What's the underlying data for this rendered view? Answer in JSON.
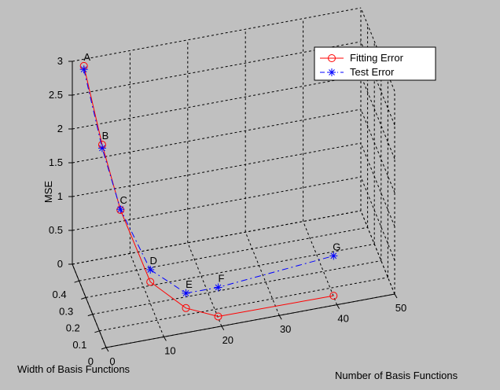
{
  "chart_data": {
    "type": "line",
    "projection": "3d",
    "grid": true,
    "legend_placement": "top-right",
    "xlabel": "Number of Basis Functions",
    "ylabel": "Width of Basis Functions",
    "zlabel": "MSE",
    "xlim": [
      0,
      50
    ],
    "ylim": [
      0,
      0.5
    ],
    "zlim": [
      0,
      3
    ],
    "x_ticks": [
      "0",
      "10",
      "20",
      "30",
      "40",
      "50"
    ],
    "y_ticks": [
      "0",
      "0.1",
      "0.2",
      "0.3",
      "0.4"
    ],
    "z_ticks": [
      "0",
      "0.5",
      "1",
      "1.5",
      "2",
      "2.5",
      "3"
    ],
    "point_labels": [
      "A",
      "B",
      "C",
      "D",
      "E",
      "F",
      "G"
    ],
    "series": [
      {
        "name": "Fitting Error",
        "color": "#ff0000",
        "marker": "circle",
        "line_style": "solid",
        "points": [
          {
            "x": 2,
            "y": 0.5,
            "z": 2.9
          },
          {
            "x": 4,
            "y": 0.4,
            "z": 1.95
          },
          {
            "x": 6,
            "y": 0.3,
            "z": 1.2
          },
          {
            "x": 10,
            "y": 0.2,
            "z": 0.32
          },
          {
            "x": 15,
            "y": 0.1,
            "z": 0.1
          },
          {
            "x": 20,
            "y": 0.05,
            "z": 0.02
          },
          {
            "x": 40,
            "y": 0.05,
            "z": 0.01
          }
        ]
      },
      {
        "name": "Test Error",
        "color": "#0000ff",
        "marker": "star",
        "line_style": "dashdot",
        "points": [
          {
            "x": 2,
            "y": 0.5,
            "z": 2.85
          },
          {
            "x": 4,
            "y": 0.4,
            "z": 1.9
          },
          {
            "x": 6,
            "y": 0.3,
            "z": 1.21
          },
          {
            "x": 10,
            "y": 0.2,
            "z": 0.5
          },
          {
            "x": 15,
            "y": 0.1,
            "z": 0.32
          },
          {
            "x": 20,
            "y": 0.05,
            "z": 0.45
          },
          {
            "x": 40,
            "y": 0.05,
            "z": 0.6
          }
        ]
      }
    ]
  }
}
